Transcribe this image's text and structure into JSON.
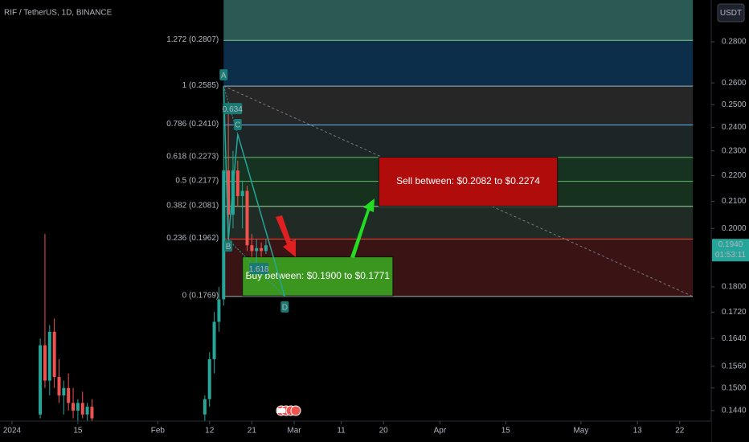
{
  "chart_data": {
    "type": "candlestick",
    "title": "RIF / TetherUS, 1D, BINANCE",
    "currency": "USDT",
    "log_scale": true,
    "up_color": "#26a69a",
    "down_color": "#ef5350",
    "xlim": [
      -2.56,
      148.7
    ],
    "xticks": [
      {
        "value": 0,
        "label": "2024"
      },
      {
        "value": 14,
        "label": "15"
      },
      {
        "value": 31,
        "label": "Feb"
      },
      {
        "value": 42,
        "label": "12"
      },
      {
        "value": 51,
        "label": "21"
      },
      {
        "value": 60,
        "label": "Mar"
      },
      {
        "value": 70,
        "label": "11"
      },
      {
        "value": 79,
        "label": "20"
      },
      {
        "value": 91,
        "label": "Apr"
      },
      {
        "value": 105,
        "label": "15"
      },
      {
        "value": 121,
        "label": "May"
      },
      {
        "value": 133,
        "label": "13"
      },
      {
        "value": 142,
        "label": "22"
      }
    ],
    "ylim": [
      0.1413,
      0.3019
    ],
    "yticks": [
      {
        "value": 0.28,
        "label": "0.2800"
      },
      {
        "value": 0.26,
        "label": "0.2600"
      },
      {
        "value": 0.25,
        "label": "0.2500"
      },
      {
        "value": 0.24,
        "label": "0.2400"
      },
      {
        "value": 0.23,
        "label": "0.2300"
      },
      {
        "value": 0.22,
        "label": "0.2200"
      },
      {
        "value": 0.21,
        "label": "0.2100"
      },
      {
        "value": 0.2,
        "label": "0.2000"
      },
      {
        "value": 0.18,
        "label": "0.1800"
      },
      {
        "value": 0.172,
        "label": "0.1720"
      },
      {
        "value": 0.164,
        "label": "0.1640"
      },
      {
        "value": 0.156,
        "label": "0.1560"
      },
      {
        "value": 0.15,
        "label": "0.1500"
      },
      {
        "value": 0.144,
        "label": "0.1440"
      }
    ],
    "x": [
      6,
      7,
      8,
      9,
      10,
      11,
      12,
      13,
      14,
      15,
      16,
      17,
      41,
      42,
      43,
      44,
      45,
      46,
      47,
      48,
      49,
      50,
      51,
      52,
      53,
      54
    ],
    "open": [
      0.143,
      0.162,
      0.152,
      0.166,
      0.153,
      0.148,
      0.15,
      0.146,
      0.144,
      0.146,
      0.143,
      0.145,
      0.143,
      0.147,
      0.158,
      0.169,
      0.176,
      0.222,
      0.205,
      0.222,
      0.212,
      0.214,
      0.194,
      0.192,
      0.193,
      0.192
    ],
    "high": [
      0.164,
      0.198,
      0.168,
      0.17,
      0.158,
      0.152,
      0.154,
      0.15,
      0.147,
      0.149,
      0.146,
      0.147,
      0.148,
      0.16,
      0.172,
      0.18,
      0.2585,
      0.25,
      0.23,
      0.226,
      0.218,
      0.216,
      0.198,
      0.196,
      0.195,
      0.196
    ],
    "low": [
      0.142,
      0.15,
      0.148,
      0.15,
      0.146,
      0.143,
      0.144,
      0.142,
      0.141,
      0.142,
      0.14,
      0.14,
      0.141,
      0.145,
      0.154,
      0.166,
      0.174,
      0.2,
      0.2,
      0.208,
      0.2,
      0.192,
      0.19,
      0.188,
      0.19,
      0.191
    ],
    "close": [
      0.162,
      0.152,
      0.166,
      0.153,
      0.148,
      0.15,
      0.146,
      0.144,
      0.146,
      0.143,
      0.145,
      0.142,
      0.147,
      0.158,
      0.169,
      0.176,
      0.222,
      0.205,
      0.222,
      0.212,
      0.214,
      0.194,
      0.192,
      0.193,
      0.192,
      0.194
    ],
    "last": {
      "price": 0.194,
      "label": "0.1940",
      "countdown": "01:53:11"
    },
    "fib": {
      "x": [
        45,
        144.8
      ],
      "top_fill": "#2b5954",
      "levels": [
        {
          "label": "1.272 (0.2807)",
          "price": 0.2807,
          "color": "#81c784",
          "fill": "#2b5954"
        },
        {
          "label": "1 (0.2585)",
          "price": 0.2585,
          "color": "#a5b6b6",
          "fill": "#0d2e4a"
        },
        {
          "label": "0.786 (0.2410)",
          "price": 0.241,
          "color": "#64b5f6",
          "fill": "#262626"
        },
        {
          "label": "0.618 (0.2273)",
          "price": 0.2273,
          "color": "#66bb6a",
          "fill": "#1c2626"
        },
        {
          "label": "0.5 (0.2177)",
          "price": 0.2177,
          "color": "#66bb6a",
          "fill": "#153320"
        },
        {
          "label": "0.382 (0.2081)",
          "price": 0.2081,
          "color": "#a5d6a7",
          "fill": "#17311f"
        },
        {
          "label": "0.236 (0.1962)",
          "price": 0.1962,
          "color": "#f44336",
          "fill": "#1f2b24"
        },
        {
          "label": "0 (0.1769)",
          "price": 0.1769,
          "color": "#a5b6b6",
          "fill": "#3a1314"
        }
      ]
    },
    "pattern": {
      "color": "#26a69a",
      "points": [
        {
          "label": "A",
          "x": 45,
          "price": 0.2585
        },
        {
          "label": "B",
          "x": 46,
          "price": 0.196
        },
        {
          "label": "C",
          "x": 48,
          "price": 0.237
        },
        {
          "label": "D",
          "x": 58,
          "price": 0.1769
        }
      ],
      "ratios": [
        0.634,
        1.618
      ]
    },
    "zones": [
      {
        "label": "Buy between: $0.1900 to $0.1771",
        "prices": [
          0.19,
          0.1771
        ],
        "x": [
          49,
          81
        ],
        "color": "#3a961f"
      },
      {
        "label": "Sell between: $0.2082 to $0.2274",
        "prices": [
          0.2082,
          0.2274
        ],
        "x": [
          78,
          116
        ],
        "color": "#b10c0c"
      }
    ]
  }
}
